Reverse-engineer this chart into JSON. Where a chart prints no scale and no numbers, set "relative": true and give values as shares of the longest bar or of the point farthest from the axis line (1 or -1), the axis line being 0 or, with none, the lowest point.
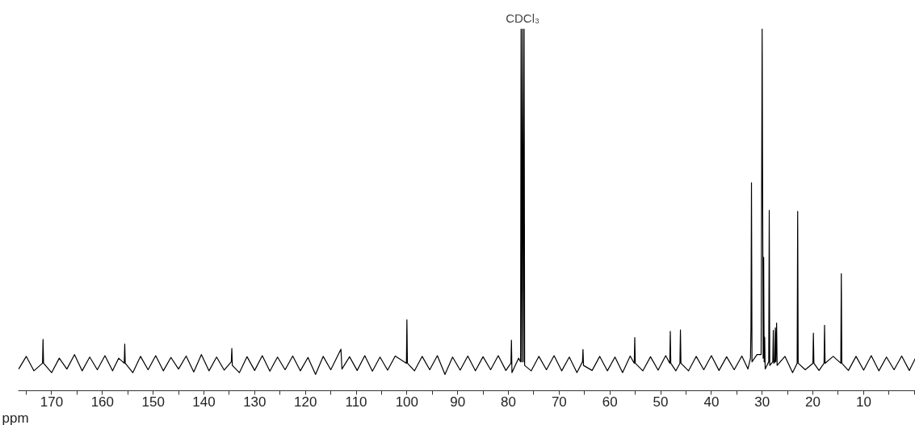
{
  "chart_data": {
    "type": "line",
    "relative": true,
    "xlabel": "ppm",
    "grid": false,
    "xlim": [
      176.6,
      -0.2
    ],
    "xticks": [
      {
        "value": 175,
        "label": null
      },
      170,
      {
        "value": 165,
        "label": null
      },
      160,
      {
        "value": 155,
        "label": null
      },
      150,
      {
        "value": 145,
        "label": null
      },
      140,
      {
        "value": 135,
        "label": null
      },
      130,
      {
        "value": 125,
        "label": null
      },
      120,
      {
        "value": 115,
        "label": null
      },
      110,
      {
        "value": 105,
        "label": null
      },
      100,
      {
        "value": 95,
        "label": null
      },
      90,
      {
        "value": 85,
        "label": null
      },
      80,
      {
        "value": 75,
        "label": null
      },
      70,
      {
        "value": 65,
        "label": null
      },
      60,
      {
        "value": 55,
        "label": null
      },
      50,
      {
        "value": 45,
        "label": null
      },
      40,
      {
        "value": 35,
        "label": null
      },
      30,
      {
        "value": 25,
        "label": null
      },
      20,
      {
        "value": 15,
        "label": null
      },
      10,
      {
        "value": 5,
        "label": null
      },
      {
        "value": 0,
        "label": null
      }
    ],
    "annotations": [
      {
        "text": "CDCl₃",
        "x": 77.2,
        "y": 1.0
      }
    ],
    "series": [
      {
        "color": "#000000",
        "x": [
          176.5,
          175,
          173.5,
          171.8,
          171.7,
          171.6,
          170,
          168.5,
          167,
          165.5,
          164,
          162.5,
          161,
          159.5,
          158,
          156.8,
          155.7,
          155.6,
          155.5,
          154,
          152.5,
          151,
          149.5,
          148,
          146.5,
          145,
          143.5,
          142,
          140.5,
          139,
          137.5,
          136,
          134.6,
          134.5,
          134.4,
          133,
          131.5,
          130,
          128.5,
          127,
          125.5,
          124,
          122.5,
          121,
          119.5,
          118,
          116.5,
          115,
          113,
          112.8,
          111.3,
          109.8,
          108.3,
          106.8,
          105.3,
          103.8,
          102.3,
          100.1,
          100.0,
          99.9,
          98.5,
          97,
          95.5,
          94,
          92.5,
          91,
          89.5,
          88,
          86.5,
          85,
          83.5,
          82,
          80.5,
          79.5,
          79.4,
          79.3,
          78,
          77.6,
          77.5,
          77.35,
          77.2,
          77.05,
          76.9,
          76.8,
          75.5,
          74,
          72.5,
          71,
          69.5,
          68,
          66.5,
          65.4,
          65.3,
          65.2,
          63.5,
          62,
          60.5,
          59,
          57.5,
          56,
          55.2,
          55.1,
          55.0,
          53.5,
          52,
          50.5,
          49,
          48.2,
          48.1,
          48.0,
          47,
          46.2,
          46.1,
          46.0,
          44.5,
          43,
          41.5,
          40,
          38.5,
          37,
          35.5,
          34,
          32.8,
          32.3,
          32.2,
          32.1,
          32.0,
          31,
          30.2,
          30.0,
          29.8,
          29.7,
          29.6,
          29.5,
          29.4,
          28.7,
          28.6,
          28.5,
          27.9,
          27.8,
          27.7,
          27.5,
          27.4,
          27.3,
          27.15,
          27.05,
          25.5,
          24,
          23.1,
          23.0,
          22.9,
          21.5,
          20.0,
          19.9,
          19.8,
          18.8,
          17.8,
          17.7,
          17.6,
          16,
          14.5,
          14.4,
          14.3,
          13,
          11.5,
          10,
          8.5,
          7,
          5.5,
          4,
          2.5,
          1,
          -0.2
        ],
        "values": [
          0.06,
          0.095,
          0.055,
          0.076,
          0.142,
          0.076,
          0.05,
          0.09,
          0.06,
          0.1,
          0.055,
          0.093,
          0.058,
          0.097,
          0.055,
          0.09,
          0.076,
          0.129,
          0.076,
          0.05,
          0.095,
          0.058,
          0.097,
          0.055,
          0.092,
          0.06,
          0.096,
          0.052,
          0.1,
          0.055,
          0.093,
          0.057,
          0.08,
          0.117,
          0.07,
          0.05,
          0.094,
          0.056,
          0.097,
          0.054,
          0.093,
          0.058,
          0.096,
          0.055,
          0.092,
          0.045,
          0.095,
          0.058,
          0.115,
          0.06,
          0.094,
          0.056,
          0.097,
          0.054,
          0.093,
          0.057,
          0.096,
          0.076,
          0.196,
          0.076,
          0.055,
          0.095,
          0.058,
          0.097,
          0.045,
          0.093,
          0.057,
          0.096,
          0.055,
          0.094,
          0.058,
          0.097,
          0.056,
          0.076,
          0.14,
          0.05,
          0.09,
          0.08,
          1.0,
          0.08,
          1.0,
          0.08,
          1.0,
          0.07,
          0.055,
          0.095,
          0.058,
          0.097,
          0.055,
          0.093,
          0.05,
          0.08,
          0.114,
          0.07,
          0.056,
          0.095,
          0.055,
          0.093,
          0.05,
          0.096,
          0.076,
          0.147,
          0.076,
          0.055,
          0.094,
          0.057,
          0.097,
          0.076,
          0.164,
          0.076,
          0.055,
          0.076,
          0.168,
          0.076,
          0.055,
          0.095,
          0.058,
          0.097,
          0.056,
          0.094,
          0.058,
          0.096,
          0.06,
          0.09,
          0.176,
          0.575,
          0.08,
          0.1,
          0.1,
          1.0,
          0.09,
          0.369,
          0.08,
          0.148,
          0.06,
          0.08,
          0.499,
          0.07,
          0.08,
          0.167,
          0.076,
          0.08,
          0.174,
          0.08,
          0.187,
          0.07,
          0.095,
          0.05,
          0.076,
          0.496,
          0.076,
          0.058,
          0.076,
          0.159,
          0.076,
          0.056,
          0.076,
          0.181,
          0.076,
          0.095,
          0.076,
          0.324,
          0.076,
          0.056,
          0.095,
          0.057,
          0.097,
          0.055,
          0.093,
          0.058,
          0.096,
          0.056,
          0.09
        ]
      }
    ]
  }
}
